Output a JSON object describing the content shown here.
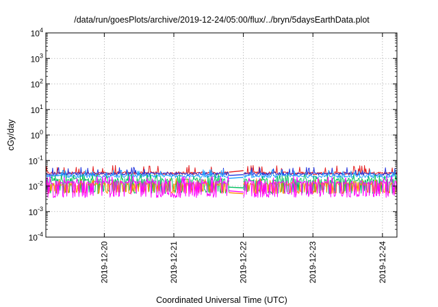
{
  "chart_data": {
    "type": "line",
    "title": "/data/run/goesPlots/archive/2019-12-24/05:00/flux/../bryn/5daysEarthData.plot",
    "xlabel": "Coordinated Universal Time (UTC)",
    "ylabel": "cGy/day",
    "yscale": "log",
    "ylim": [
      0.0001,
      10000
    ],
    "xlim": [
      "2019-12-19T03:50",
      "2019-12-24T05:00"
    ],
    "grid": true,
    "y_ticks": [
      {
        "base": "10",
        "exp": "4",
        "value": 10000
      },
      {
        "base": "10",
        "exp": "3",
        "value": 1000
      },
      {
        "base": "10",
        "exp": "2",
        "value": 100
      },
      {
        "base": "10",
        "exp": "1",
        "value": 10
      },
      {
        "base": "10",
        "exp": "0",
        "value": 1
      },
      {
        "base": "10",
        "exp": "-1",
        "value": 0.1
      },
      {
        "base": "10",
        "exp": "-2",
        "value": 0.01
      },
      {
        "base": "10",
        "exp": "-3",
        "value": 0.001
      },
      {
        "base": "10",
        "exp": "-4",
        "value": 0.0001
      }
    ],
    "x_ticks": [
      {
        "label": "2019-12-20",
        "value": "2019-12-20T00:00"
      },
      {
        "label": "2019-12-21",
        "value": "2019-12-21T00:00"
      },
      {
        "label": "2019-12-22",
        "value": "2019-12-22T00:00"
      },
      {
        "label": "2019-12-23",
        "value": "2019-12-23T00:00"
      },
      {
        "label": "2019-12-24",
        "value": "2019-12-24T00:00"
      }
    ],
    "data_gap": [
      "2019-12-21T19:00",
      "2019-12-22T00:00"
    ],
    "series": [
      {
        "color": "#e41a1c",
        "base": 0.032,
        "low": 0.02,
        "high": 0.065,
        "dips": false,
        "gap_values": [
          0.035,
          0.04
        ]
      },
      {
        "color": "#2233dd",
        "base": 0.03,
        "low": 0.018,
        "high": 0.055,
        "dips": false,
        "gap_values": [
          0.026,
          0.028
        ]
      },
      {
        "color": "#1f9fff",
        "base": 0.024,
        "low": 0.014,
        "high": 0.045,
        "dips": false,
        "gap_values": [
          0.02,
          0.022
        ]
      },
      {
        "color": "#00c060",
        "base": 0.018,
        "low": 0.005,
        "high": 0.03,
        "dips": true,
        "gap_values": [
          0.009,
          0.0085
        ]
      },
      {
        "color": "#ff8c00",
        "base": 0.012,
        "low": 0.005,
        "high": 0.02,
        "dips": true,
        "gap_values": [
          0.0055,
          0.005
        ]
      },
      {
        "color": "#ff00ff",
        "base": 0.014,
        "low": 0.0035,
        "high": 0.025,
        "dips": true,
        "gap_values": [
          0.0065,
          0.0058
        ]
      }
    ]
  }
}
